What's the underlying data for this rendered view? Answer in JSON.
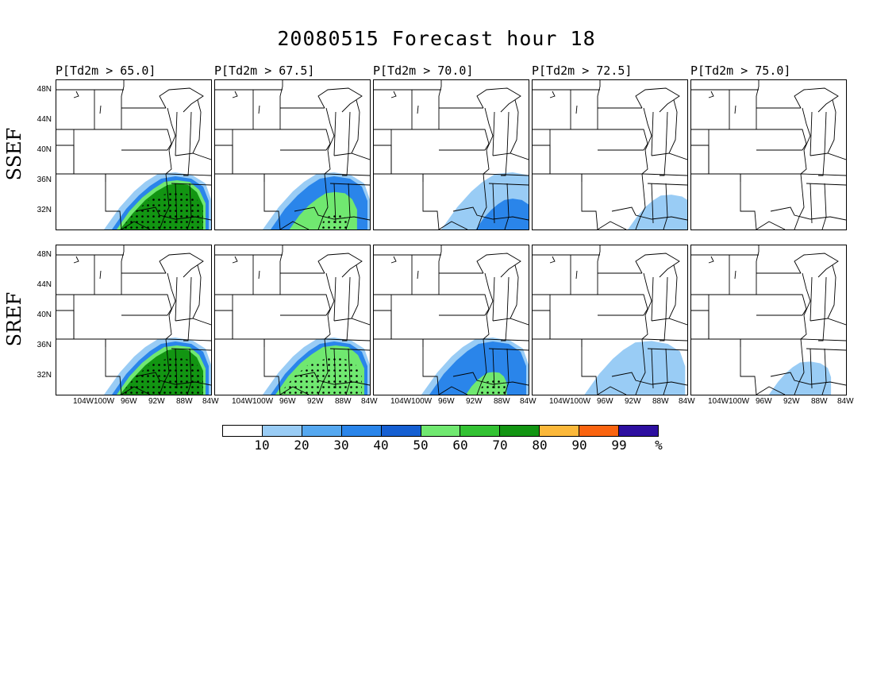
{
  "title": "20080515 Forecast hour 18",
  "columns": [
    {
      "label": "P[Td2m > 65.0]"
    },
    {
      "label": "P[Td2m > 67.5]"
    },
    {
      "label": "P[Td2m > 70.0]"
    },
    {
      "label": "P[Td2m > 72.5]"
    },
    {
      "label": "P[Td2m > 75.0]"
    }
  ],
  "rows": [
    {
      "label": "SSEF"
    },
    {
      "label": "SREF"
    }
  ],
  "lat_labels": [
    "48N",
    "44N",
    "40N",
    "36N",
    "32N"
  ],
  "lon_labels": [
    "104W",
    "100W",
    "96W",
    "92W",
    "88W",
    "84W"
  ],
  "colorbar": {
    "colors": [
      "#ffffff",
      "#99ccf5",
      "#55a8f0",
      "#2a85ea",
      "#155fd2",
      "#70e870",
      "#33c233",
      "#129512",
      "#fbb83a",
      "#fa6410",
      "#2d0fa0"
    ],
    "labels": [
      "10",
      "20",
      "30",
      "40",
      "50",
      "60",
      "70",
      "80",
      "90",
      "99",
      "%"
    ]
  },
  "forecast_levels": [
    [
      4.0,
      2.6,
      1.3,
      0.35,
      0.0
    ],
    [
      4.0,
      3.0,
      2.1,
      0.9,
      0.3
    ]
  ],
  "stippled_panels": [
    "SSEF P[Td2m > 65.0]",
    "SSEF P[Td2m > 67.5]",
    "SREF P[Td2m > 65.0]",
    "SREF P[Td2m > 67.5]"
  ]
}
